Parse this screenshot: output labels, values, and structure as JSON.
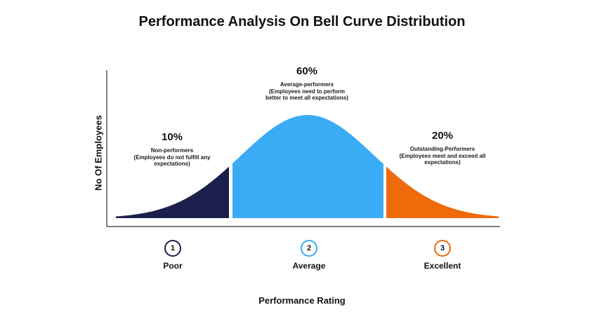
{
  "chart_data": {
    "type": "area",
    "title": "Performance Analysis On Bell Curve Distribution",
    "xlabel": "Performance Rating",
    "ylabel": "No Of Employees",
    "grid": false,
    "segments": [
      {
        "percent_label": "10%",
        "value": 10,
        "description": "Non-performers\n(Employees do not fulfill any\nexpectations)",
        "rating_number": "1",
        "rating_label": "Poor",
        "color": "#1a1f4b"
      },
      {
        "percent_label": "60%",
        "value": 60,
        "description": "Average-performers\n(Employees need to perform\nbetter to meet all expectations)",
        "rating_number": "2",
        "rating_label": "Average",
        "color": "#3aabf5"
      },
      {
        "percent_label": "20%",
        "value": 20,
        "description": "Outstanding-Performers\n(Employees meet and exceed all\nexpectations)",
        "rating_number": "3",
        "rating_label": "Excellent",
        "color": "#ee6a0b"
      }
    ]
  }
}
